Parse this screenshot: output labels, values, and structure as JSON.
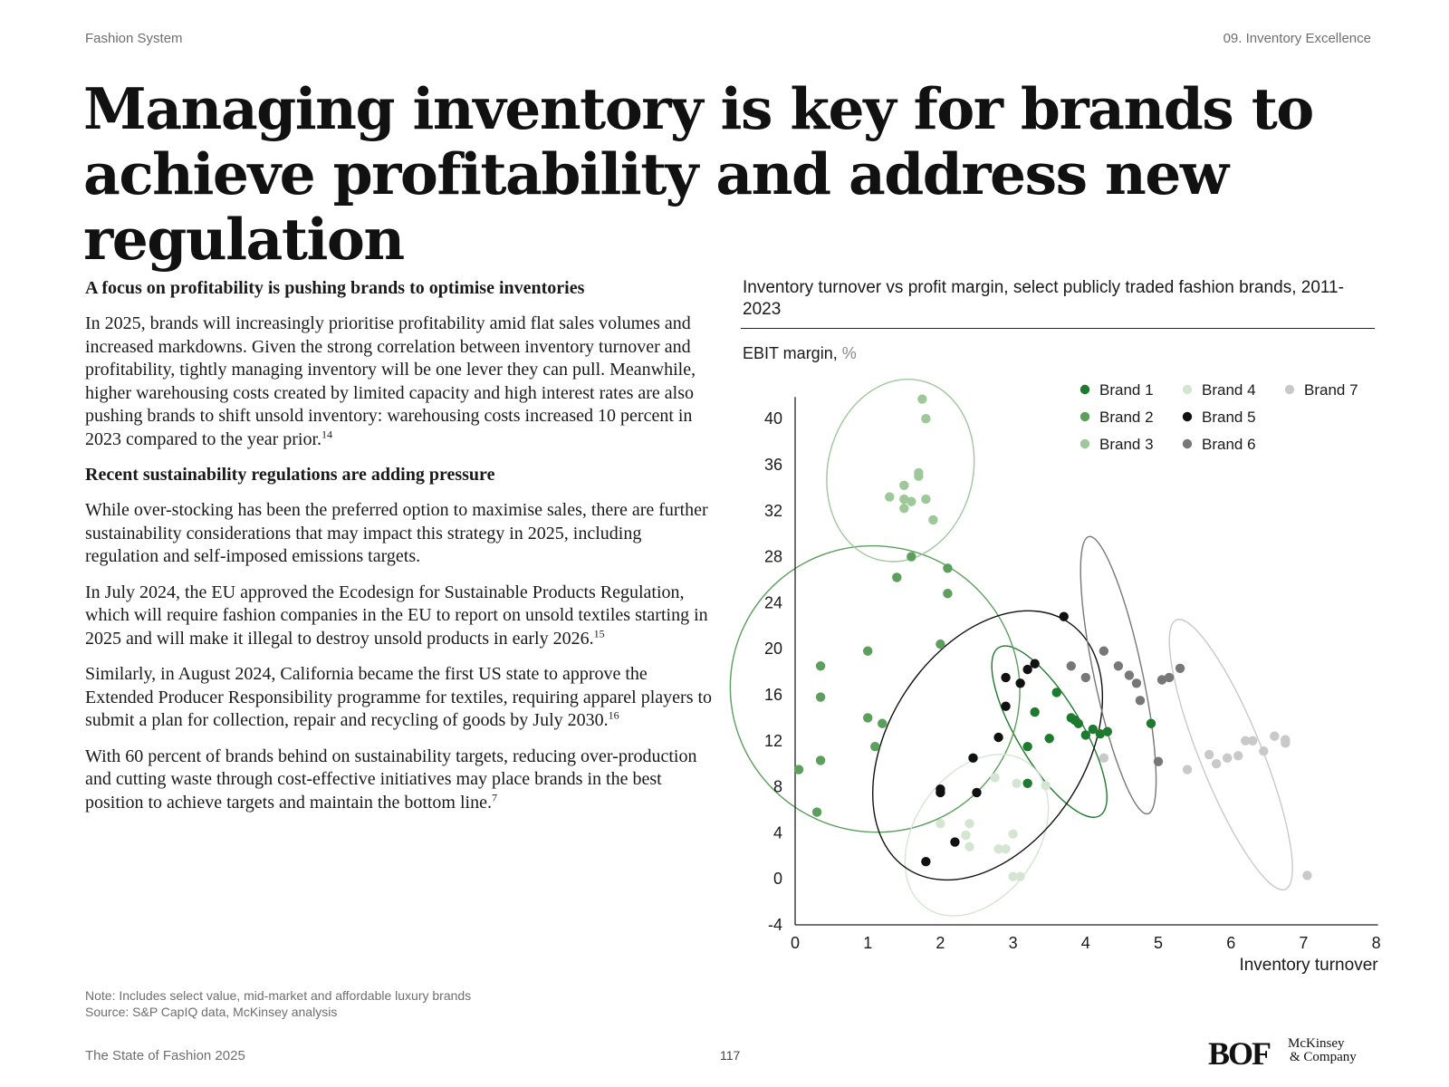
{
  "header": {
    "left": "Fashion System",
    "right": "09. Inventory Excellence"
  },
  "title": "Managing inventory is key for brands to achieve profitability and address new regulation",
  "body": {
    "heading1": "A focus on profitability is pushing brands to optimise inventories",
    "p1": "In 2025, brands will increasingly prioritise profitability amid flat sales volumes and increased markdowns. Given the strong correlation between inventory turnover and profitability, tightly managing inventory will be one lever they can pull. Meanwhile, higher warehousing costs created by limited capacity and high interest rates are also pushing brands to shift unsold inventory: warehousing costs increased 10 percent in 2023 compared to the year prior.",
    "p1_ref": "14",
    "heading2": "Recent sustainability regulations are adding pressure",
    "p2": "While over-stocking has been the preferred option to maximise sales, there are further sustainability considerations that may impact this strategy in 2025, including regulation and self-imposed emissions targets.",
    "p3": "In July 2024, the EU approved the Ecodesign for Sustainable Products Regulation, which will require fashion companies in the EU to report on unsold textiles starting in 2025 and will make it illegal to destroy unsold products in early 2026.",
    "p3_ref": "15",
    "p4": "Similarly, in August 2024, California became the first US state to approve the Extended Producer Responsibility programme for textiles, requiring apparel players to submit a plan for collection, repair and recycling of goods by July 2030.",
    "p4_ref": "16",
    "p5": "With 60 percent of brands behind on sustainability targets, reducing over-production and cutting waste through cost-effective initiatives may place brands in the best position to achieve targets and maintain the bottom line.",
    "p5_ref": "7"
  },
  "chart": {
    "title": "Inventory turnover vs profit margin, select publicly traded fashion brands, 2011-2023",
    "ylabel_text": "EBIT margin, ",
    "ylabel_unit": "%",
    "xlabel": "Inventory turnover"
  },
  "chart_data": {
    "type": "scatter",
    "title": "Inventory turnover vs profit margin, select publicly traded fashion brands, 2011-2023",
    "xlabel": "Inventory turnover",
    "ylabel": "EBIT margin, %",
    "xlim": [
      0,
      8
    ],
    "ylim": [
      -4,
      40
    ],
    "xticks": [
      0,
      1,
      2,
      3,
      4,
      5,
      6,
      7,
      8
    ],
    "yticks": [
      -4,
      0,
      4,
      8,
      12,
      16,
      20,
      24,
      28,
      32,
      36,
      40
    ],
    "legend_position": "top-right",
    "grid": false,
    "series": [
      {
        "name": "Brand 1",
        "color": "#1e7a2e",
        "ellipse": {
          "cx": 3.5,
          "cy": 12.8,
          "rx": 1.35,
          "ry": 2.8,
          "angle": 59
        },
        "points": [
          [
            3.2,
            11.5
          ],
          [
            3.3,
            14.5
          ],
          [
            3.5,
            12.2
          ],
          [
            3.6,
            16.2
          ],
          [
            3.8,
            14
          ],
          [
            3.9,
            13.5
          ],
          [
            4.0,
            12.5
          ],
          [
            4.1,
            13
          ],
          [
            4.2,
            12.6
          ],
          [
            4.3,
            12.8
          ],
          [
            3.2,
            8.3
          ],
          [
            4.9,
            13.5
          ],
          [
            3.85,
            13.8
          ]
        ]
      },
      {
        "name": "Brand 2",
        "color": "#5c9e5c",
        "ellipse": {
          "cx": 1.1,
          "cy": 16.5,
          "rx": 2.0,
          "ry": 12.4,
          "angle": 26
        },
        "points": [
          [
            0.05,
            9.5
          ],
          [
            0.3,
            5.8
          ],
          [
            0.35,
            10.3
          ],
          [
            0.35,
            15.8
          ],
          [
            0.35,
            18.5
          ],
          [
            1.0,
            19.8
          ],
          [
            1.0,
            14
          ],
          [
            1.1,
            11.5
          ],
          [
            1.2,
            13.5
          ],
          [
            1.4,
            26.2
          ],
          [
            1.6,
            28
          ],
          [
            2.0,
            20.4
          ],
          [
            2.1,
            24.8
          ],
          [
            2.1,
            27
          ]
        ]
      },
      {
        "name": "Brand 3",
        "color": "#9ec89a",
        "ellipse": {
          "cx": 1.45,
          "cy": 35.5,
          "rx": 1.0,
          "ry": 8.0,
          "angle": 13
        },
        "points": [
          [
            1.75,
            41.7
          ],
          [
            1.8,
            40
          ],
          [
            1.7,
            35.3
          ],
          [
            1.7,
            35
          ],
          [
            1.5,
            34.2
          ],
          [
            1.3,
            33.2
          ],
          [
            1.5,
            33
          ],
          [
            1.6,
            32.8
          ],
          [
            1.5,
            32.2
          ],
          [
            1.8,
            33
          ],
          [
            1.9,
            31.2
          ]
        ]
      },
      {
        "name": "Brand 4",
        "color": "#d4e6d2",
        "ellipse": {
          "cx": 2.5,
          "cy": 3.8,
          "rx": 0.85,
          "ry": 7.7,
          "angle": 35
        },
        "points": [
          [
            2.75,
            8.8
          ],
          [
            3.05,
            8.3
          ],
          [
            3.45,
            8.1
          ],
          [
            2.0,
            4.8
          ],
          [
            2.4,
            4.8
          ],
          [
            2.35,
            3.8
          ],
          [
            2.4,
            2.8
          ],
          [
            2.8,
            2.6
          ],
          [
            2.9,
            2.6
          ],
          [
            3.0,
            3.9
          ],
          [
            3.0,
            0.2
          ],
          [
            3.1,
            0.2
          ]
        ]
      },
      {
        "name": "Brand 5",
        "color": "#111111",
        "ellipse": {
          "cx": 2.65,
          "cy": 11.6,
          "rx": 1.35,
          "ry": 12.8,
          "angle": 33
        },
        "points": [
          [
            1.8,
            1.5
          ],
          [
            2.2,
            3.2
          ],
          [
            2.0,
            7.5
          ],
          [
            2.0,
            7.8
          ],
          [
            2.45,
            10.5
          ],
          [
            2.5,
            7.5
          ],
          [
            2.8,
            12.3
          ],
          [
            2.9,
            15
          ],
          [
            2.9,
            17.5
          ],
          [
            3.1,
            17
          ],
          [
            3.2,
            18.2
          ],
          [
            3.3,
            18.7
          ],
          [
            3.7,
            22.8
          ]
        ]
      },
      {
        "name": "Brand 6",
        "color": "#777777",
        "ellipse": {
          "cx": 4.45,
          "cy": 17.7,
          "rx": 1.95,
          "ry": 2.1,
          "angle": 78
        },
        "points": [
          [
            3.8,
            18.5
          ],
          [
            4.0,
            17.5
          ],
          [
            4.25,
            19.8
          ],
          [
            4.45,
            18.5
          ],
          [
            4.6,
            17.7
          ],
          [
            4.7,
            17
          ],
          [
            4.75,
            15.5
          ],
          [
            5.05,
            17.3
          ],
          [
            5.15,
            17.5
          ],
          [
            5.3,
            18.3
          ],
          [
            5.0,
            10.2
          ]
        ]
      },
      {
        "name": "Brand 7",
        "color": "#c9c9c9",
        "ellipse": {
          "cx": 6.0,
          "cy": 10.8,
          "rx": 2.0,
          "ry": 2.7,
          "angle": 68
        },
        "points": [
          [
            4.25,
            10.5
          ],
          [
            5.4,
            9.5
          ],
          [
            5.7,
            10.8
          ],
          [
            5.8,
            10
          ],
          [
            5.95,
            10.5
          ],
          [
            6.1,
            10.7
          ],
          [
            6.2,
            12
          ],
          [
            6.3,
            12
          ],
          [
            6.45,
            11.1
          ],
          [
            6.6,
            12.4
          ],
          [
            6.75,
            12
          ],
          [
            6.75,
            12.1
          ],
          [
            6.75,
            11.8
          ],
          [
            7.05,
            0.3
          ]
        ]
      }
    ]
  },
  "footer": {
    "note": "Note: Includes select value, mid-market and affordable luxury brands",
    "source": "Source: S&P CapIQ data, McKinsey analysis",
    "publication": "The State of Fashion 2025",
    "page": "117",
    "logo_bof": "BOF",
    "logo_mck_line1": "McKinsey",
    "logo_mck_line2": "& Company"
  }
}
